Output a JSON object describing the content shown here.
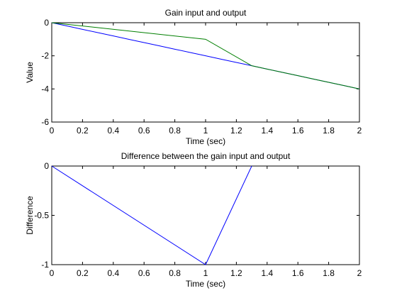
{
  "chart_data": [
    {
      "type": "line",
      "title": "Gain input and output",
      "xlabel": "Time (sec)",
      "ylabel": "Value",
      "xlim": [
        0,
        2
      ],
      "ylim": [
        -6,
        0
      ],
      "xticks": [
        "0",
        "0.2",
        "0.4",
        "0.6",
        "0.8",
        "1",
        "1.2",
        "1.4",
        "1.6",
        "1.8",
        "2"
      ],
      "yticks": [
        "-6",
        "-4",
        "-2",
        "0"
      ],
      "grid": false,
      "series": [
        {
          "color": "#0000FF",
          "x": [
            0,
            0.1,
            0.2,
            0.3,
            0.4,
            0.5,
            0.6,
            0.7,
            0.8,
            0.9,
            1.0,
            1.1,
            1.2,
            1.3,
            1.4,
            1.5,
            1.6,
            1.7,
            1.8,
            1.9,
            2.0
          ],
          "y": [
            0,
            -0.2,
            -0.4,
            -0.6,
            -0.8,
            -1.0,
            -1.2,
            -1.4,
            -1.6,
            -1.8,
            -2.0,
            -2.2,
            -2.4,
            -2.6,
            -2.8,
            -3.0,
            -3.2,
            -3.4,
            -3.6,
            -3.8,
            -4.0
          ]
        },
        {
          "color": "#007F00",
          "x": [
            0,
            1.0,
            1.3,
            1.4,
            1.5,
            1.6,
            1.7,
            1.8,
            1.9,
            2.0
          ],
          "y": [
            0,
            -1.0,
            -2.6,
            -2.8,
            -3.0,
            -3.2,
            -3.4,
            -3.6,
            -3.8,
            -4.0
          ]
        }
      ]
    },
    {
      "type": "line",
      "title": "Difference between the gain input and output",
      "xlabel": "Time (sec)",
      "ylabel": "Difference",
      "xlim": [
        0,
        2
      ],
      "ylim": [
        -1,
        0
      ],
      "xticks": [
        "0",
        "0.2",
        "0.4",
        "0.6",
        "0.8",
        "1",
        "1.2",
        "1.4",
        "1.6",
        "1.8",
        "2"
      ],
      "yticks": [
        "-1",
        "-0.5",
        "0"
      ],
      "grid": false,
      "series": [
        {
          "color": "#0000FF",
          "x": [
            0,
            1.0,
            1.3
          ],
          "y": [
            0,
            -1.0,
            0
          ]
        }
      ]
    }
  ]
}
